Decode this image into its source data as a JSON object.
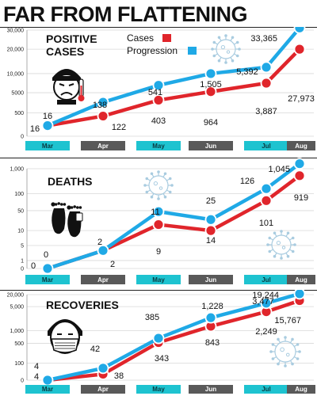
{
  "title": "FAR FROM FLATTENING",
  "colors": {
    "cases": "#e0252b",
    "progression": "#1fa9e6",
    "band_cyan": "#1ec3d0",
    "band_gray": "#595959",
    "grid": "#d8d8d8",
    "virus": "#a9cce0",
    "text": "#111111"
  },
  "legend": [
    {
      "label": "Cases",
      "color": "#e0252b"
    },
    {
      "label": "Progression",
      "color": "#1fa9e6"
    }
  ],
  "months": [
    "Mar",
    "Apr",
    "May",
    "Jun",
    "Jul",
    "Aug"
  ],
  "chart_data": [
    {
      "type": "line",
      "title_lines": [
        "POSITIVE",
        "CASES"
      ],
      "icon": "feverish-person-icon",
      "y_ticks": [
        "30,000",
        "20,000",
        "10,000",
        "5000",
        "500",
        "0"
      ],
      "x": [
        "Mar",
        "Apr",
        "May",
        "Jun",
        "Jul",
        "Aug"
      ],
      "series": [
        {
          "name": "Cases",
          "color": "#e0252b",
          "values": [
            16,
            122,
            403,
            964,
            3887,
            27973
          ],
          "labels": [
            "16",
            "122",
            "403",
            "964",
            "3,887",
            "27,973"
          ]
        },
        {
          "name": "Progression",
          "color": "#1fa9e6",
          "values": [
            16,
            138,
            541,
            1505,
            5392,
            33365
          ],
          "labels": [
            "16",
            "138",
            "541",
            "1,505",
            "5,392",
            "33,365"
          ]
        }
      ]
    },
    {
      "type": "line",
      "title_lines": [
        "DEATHS"
      ],
      "icon": "footprints-icon",
      "y_ticks": [
        "1,000",
        "100",
        "50",
        "10",
        "5",
        "1",
        "0"
      ],
      "x": [
        "Mar",
        "Apr",
        "May",
        "Jun",
        "Jul",
        "Aug"
      ],
      "series": [
        {
          "color": "#e0252b",
          "values": [
            0,
            2,
            9,
            14,
            101,
            919
          ],
          "labels": [
            "0",
            "2",
            "9",
            "14",
            "101",
            "919"
          ]
        },
        {
          "color": "#1fa9e6",
          "values": [
            0,
            2,
            11,
            25,
            126,
            1045
          ],
          "labels": [
            "0",
            "2",
            "11",
            "25",
            "126",
            "1,045"
          ]
        }
      ]
    },
    {
      "type": "line",
      "title_lines": [
        "RECOVERIES"
      ],
      "icon": "masked-face-icon",
      "y_ticks": [
        "20,000",
        "5,000",
        "1,000",
        "500",
        "100",
        "0"
      ],
      "x": [
        "Mar",
        "Apr",
        "May",
        "Jun",
        "Jul",
        "Aug"
      ],
      "series": [
        {
          "color": "#e0252b",
          "values": [
            4,
            38,
            343,
            843,
            2249,
            15767
          ],
          "labels": [
            "4",
            "38",
            "343",
            "843",
            "2,249",
            "15,767"
          ]
        },
        {
          "color": "#1fa9e6",
          "values": [
            4,
            42,
            385,
            1228,
            3477,
            19244
          ],
          "labels": [
            "4",
            "42",
            "385",
            "1,228",
            "3,477",
            "19,244"
          ]
        }
      ]
    }
  ]
}
